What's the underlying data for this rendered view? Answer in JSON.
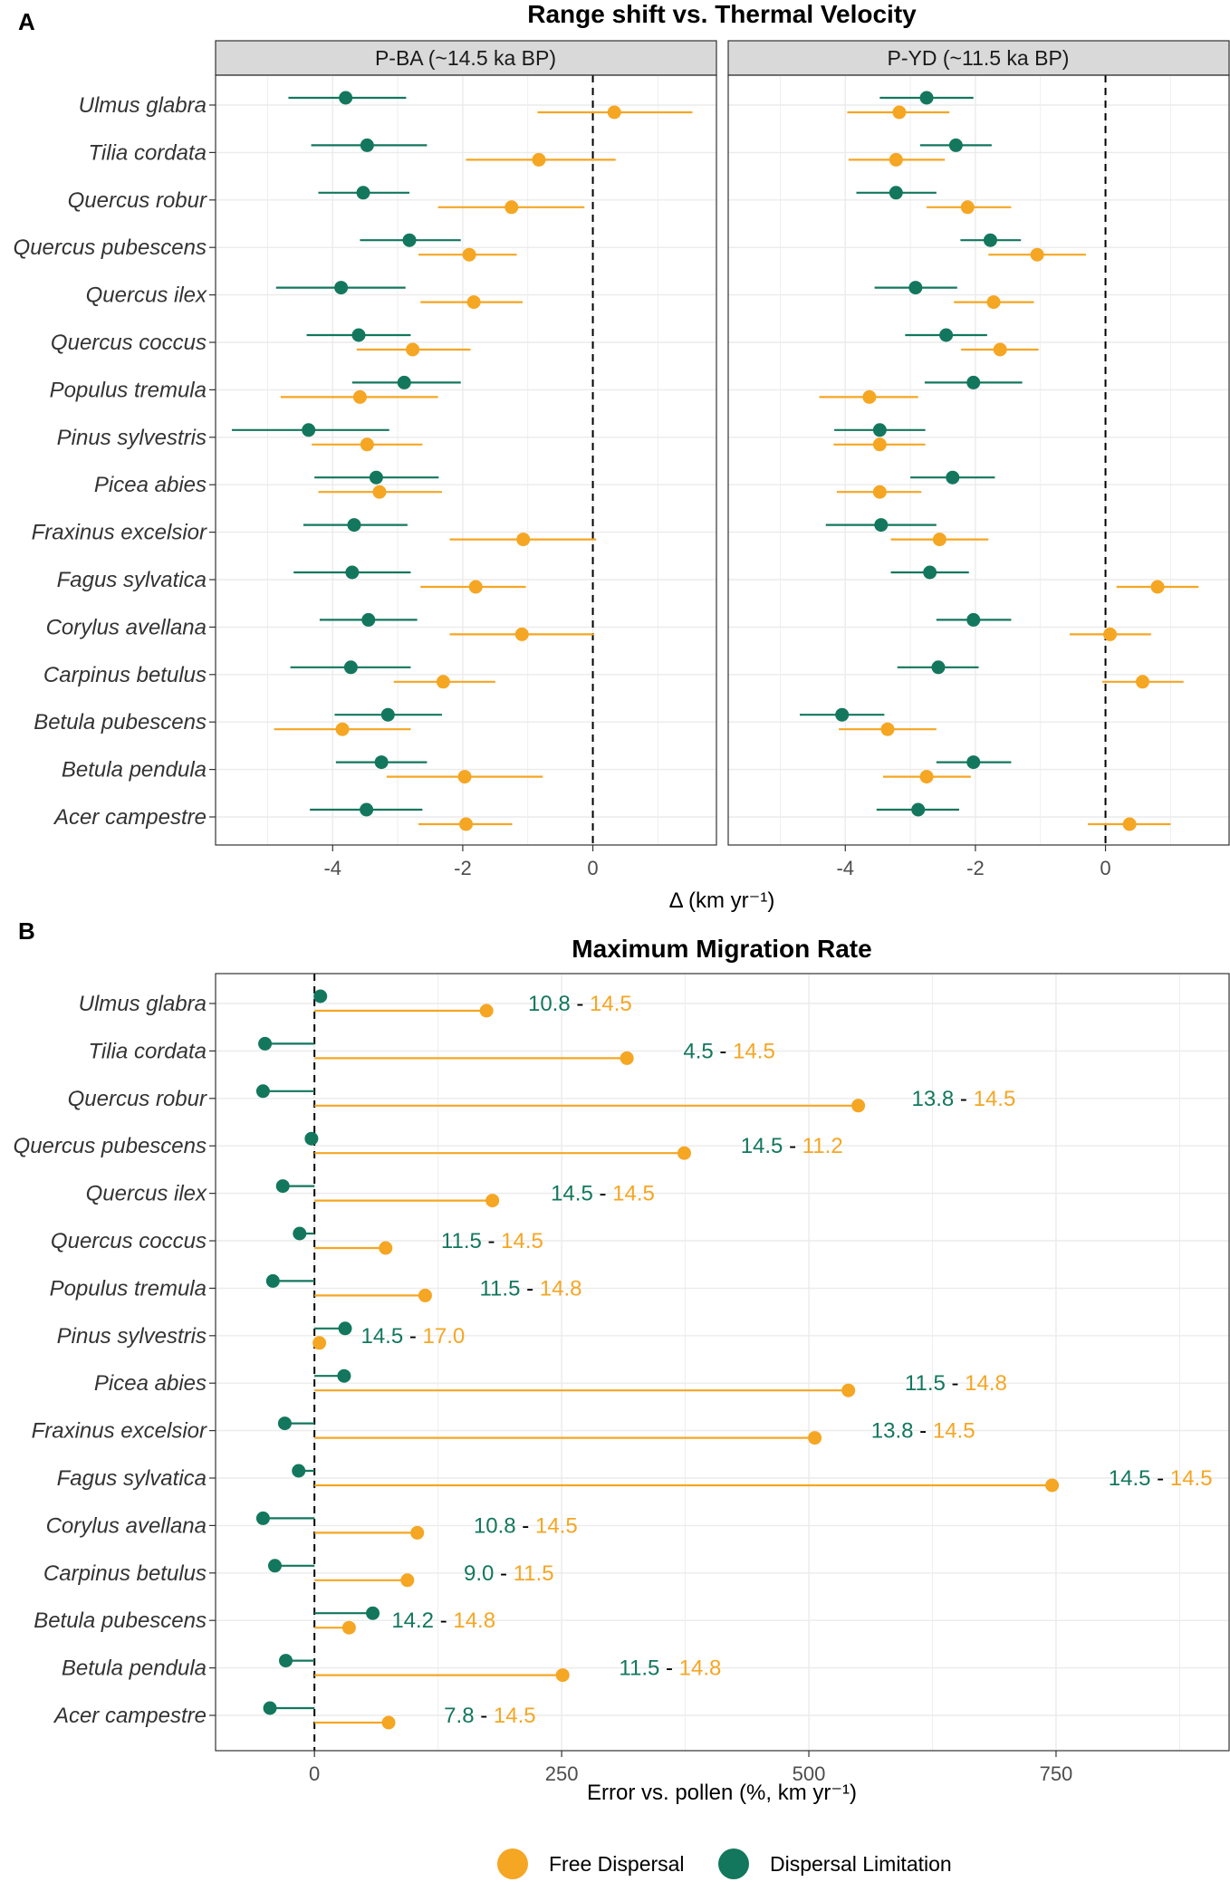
{
  "colors": {
    "free": "#F5A623",
    "limit": "#13775D",
    "grid": "#ebebeb",
    "strip_bg": "#d9d9d9"
  },
  "chart_data": [
    {
      "panel": "A",
      "type": "scatter",
      "title": "Range shift vs. Thermal Velocity",
      "xlabel": "Δ (km yr⁻¹)",
      "xlim": [
        -5.8,
        1.9
      ],
      "xticks": [
        -4,
        -2,
        0
      ],
      "tick_labels": [
        "-4",
        "-2",
        "0"
      ],
      "facets": [
        "P-BA (~14.5 ka BP)",
        "P-YD (~11.5 ka BP)"
      ],
      "categories": [
        "Ulmus glabra",
        "Tilia cordata",
        "Quercus robur",
        "Quercus pubescens",
        "Quercus ilex",
        "Quercus coccus",
        "Populus tremula",
        "Pinus sylvestris",
        "Picea abies",
        "Fraxinus excelsior",
        "Fagus sylvatica",
        "Corylus avellana",
        "Carpinus betulus",
        "Betula pubescens",
        "Betula pendula",
        "Acer campestre"
      ],
      "series": [
        {
          "name": "Free Dispersal",
          "facet": 0,
          "values": [
            0.33,
            -0.83,
            -1.25,
            -1.9,
            -1.83,
            -2.77,
            -3.58,
            -3.47,
            -3.28,
            -1.07,
            -1.8,
            -1.09,
            -2.3,
            -3.85,
            -1.97,
            -1.95
          ],
          "ci_low": [
            -0.85,
            -1.95,
            -2.38,
            -2.68,
            -2.65,
            -3.63,
            -4.8,
            -4.32,
            -4.22,
            -2.2,
            -2.65,
            -2.2,
            -3.06,
            -4.9,
            -3.17,
            -2.68
          ],
          "ci_high": [
            1.53,
            0.35,
            -0.13,
            -1.17,
            -1.08,
            -1.88,
            -2.38,
            -2.62,
            -2.32,
            0.05,
            -1.03,
            0.02,
            -1.5,
            -2.8,
            -0.77,
            -1.24
          ]
        },
        {
          "name": "Dispersal Limitation",
          "facet": 0,
          "values": [
            -3.8,
            -3.47,
            -3.53,
            -2.82,
            -3.87,
            -3.6,
            -2.9,
            -4.37,
            -3.33,
            -3.67,
            -3.7,
            -3.45,
            -3.72,
            -3.15,
            -3.25,
            -3.48
          ],
          "ci_low": [
            -4.68,
            -4.33,
            -4.22,
            -3.58,
            -4.87,
            -4.4,
            -3.7,
            -5.55,
            -4.28,
            -4.45,
            -4.6,
            -4.2,
            -4.65,
            -3.97,
            -3.95,
            -4.35
          ],
          "ci_high": [
            -2.87,
            -2.55,
            -2.82,
            -2.03,
            -2.88,
            -2.8,
            -2.03,
            -3.13,
            -2.37,
            -2.85,
            -2.8,
            -2.7,
            -2.8,
            -2.32,
            -2.55,
            -2.62
          ]
        },
        {
          "name": "Free Dispersal",
          "facet": 1,
          "values": [
            -3.17,
            -3.22,
            -2.12,
            -1.05,
            -1.72,
            -1.62,
            -3.63,
            -3.47,
            -3.47,
            -2.55,
            0.8,
            0.07,
            0.57,
            -3.35,
            -2.75,
            0.37
          ],
          "ci_low": [
            -3.97,
            -3.95,
            -2.75,
            -1.8,
            -2.33,
            -2.22,
            -4.4,
            -4.18,
            -4.13,
            -3.3,
            0.17,
            -0.55,
            -0.05,
            -4.1,
            -3.42,
            -0.27
          ],
          "ci_high": [
            -2.4,
            -2.47,
            -1.45,
            -0.3,
            -1.1,
            -1.03,
            -2.88,
            -2.77,
            -2.83,
            -1.8,
            1.43,
            0.7,
            1.2,
            -2.6,
            -2.07,
            1.0
          ]
        },
        {
          "name": "Dispersal Limitation",
          "facet": 1,
          "values": [
            -2.75,
            -2.3,
            -3.22,
            -1.77,
            -2.92,
            -2.45,
            -2.03,
            -3.47,
            -2.35,
            -3.45,
            -2.7,
            -2.03,
            -2.57,
            -4.05,
            -2.03,
            -2.88
          ],
          "ci_low": [
            -3.47,
            -2.85,
            -3.83,
            -2.23,
            -3.55,
            -3.08,
            -2.78,
            -4.17,
            -3.0,
            -4.3,
            -3.3,
            -2.6,
            -3.2,
            -4.7,
            -2.6,
            -3.52
          ],
          "ci_high": [
            -2.03,
            -1.75,
            -2.6,
            -1.3,
            -2.28,
            -1.82,
            -1.28,
            -2.77,
            -1.7,
            -2.6,
            -2.1,
            -1.45,
            -1.95,
            -3.4,
            -1.45,
            -2.25
          ]
        }
      ]
    },
    {
      "panel": "B",
      "type": "lollipop",
      "title": "Maximum Migration Rate",
      "xlabel": "Error vs. pollen (%, km yr⁻¹)",
      "xlim": [
        -100,
        925
      ],
      "xticks": [
        0,
        250,
        500,
        750
      ],
      "tick_labels": [
        "0",
        "250",
        "500",
        "750"
      ],
      "categories": [
        "Ulmus glabra",
        "Tilia cordata",
        "Quercus robur",
        "Quercus pubescens",
        "Quercus ilex",
        "Quercus coccus",
        "Populus tremula",
        "Pinus sylvestris",
        "Picea abies",
        "Fraxinus excelsior",
        "Fagus sylvatica",
        "Corylus avellana",
        "Carpinus betulus",
        "Betula pubescens",
        "Betula pendula",
        "Acer campestre"
      ],
      "series": [
        {
          "name": "Free Dispersal",
          "values": [
            174,
            316,
            550,
            374,
            180,
            72,
            112,
            5,
            540,
            506,
            746,
            104,
            94,
            35,
            251,
            75
          ],
          "rates": [
            "14.5",
            "14.5",
            "14.5",
            "11.2",
            "14.5",
            "14.5",
            "14.8",
            "17.0",
            "14.8",
            "14.5",
            "14.5",
            "14.5",
            "11.5",
            "14.8",
            "14.8",
            "14.5"
          ]
        },
        {
          "name": "Dispersal Limitation",
          "values": [
            6,
            -50,
            -52,
            -3,
            -32,
            -15,
            -42,
            31,
            30,
            -30,
            -16,
            -52,
            -40,
            59,
            -29,
            -45
          ],
          "rates": [
            "10.8",
            "4.5",
            "13.8",
            "14.5",
            "14.5",
            "11.5",
            "11.5",
            "14.5",
            "11.5",
            "13.8",
            "14.5",
            "10.8",
            "9.0",
            "14.2",
            "11.5",
            "7.8"
          ]
        }
      ],
      "label_x": [
        216,
        373,
        604,
        431,
        239,
        128,
        167,
        47,
        597,
        563,
        803,
        161,
        151,
        78,
        308,
        131
      ]
    }
  ],
  "legend": {
    "items": [
      "Free Dispersal",
      "Dispersal Limitation"
    ]
  }
}
